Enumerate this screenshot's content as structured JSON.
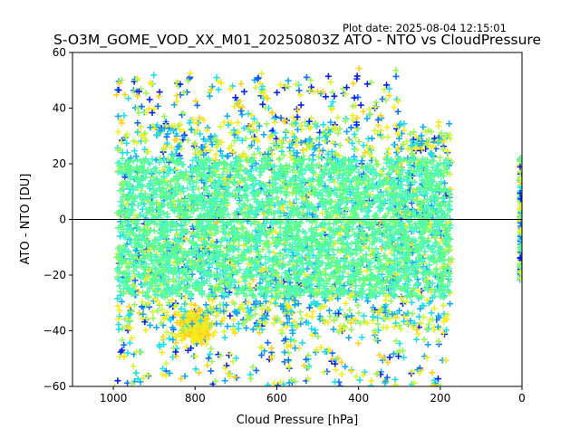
{
  "header": {
    "plot_date": "Plot date: 2025-08-04 12:15:01"
  },
  "chart_data": {
    "type": "scatter",
    "title": "S-O3M_GOME_VOD_XX_M01_20250803Z ATO - NTO vs CloudPressure",
    "xlabel": "Cloud Pressure [hPa]",
    "ylabel": "ATO - NTO [DU]",
    "xlim": [
      1100,
      0
    ],
    "ylim": [
      -60,
      60
    ],
    "x_inverted": true,
    "xticks": [
      1000,
      800,
      600,
      400,
      200,
      0
    ],
    "xtick_labels": [
      "1000",
      "800",
      "600",
      "400",
      "200",
      "0"
    ],
    "yticks": [
      -60,
      -40,
      -20,
      0,
      20,
      40,
      60
    ],
    "ytick_labels": [
      "−60",
      "−40",
      "−20",
      "0",
      "20",
      "40",
      "60"
    ],
    "reference_line_y": 0,
    "marker": "plus",
    "grid": false,
    "colors": [
      "#0a1ef0",
      "#0f6cf8",
      "#14a8f0",
      "#1ee0ec",
      "#4cf5c4",
      "#5cff8c",
      "#9cf55a",
      "#d6f536",
      "#f7ec1e",
      "#ffd21e"
    ],
    "density_regions": [
      {
        "x_range": [
          990,
          175
        ],
        "y_range": [
          -28,
          22
        ],
        "description_level": "core"
      },
      {
        "x_range": [
          990,
          175
        ],
        "y_range": [
          -40,
          35
        ],
        "description_level": "envelope"
      },
      {
        "x_range": [
          990,
          175
        ],
        "y_range": [
          -60,
          52
        ],
        "description_level": "outliers"
      },
      {
        "x_range": [
          5,
          0
        ],
        "y_range": [
          -22,
          22
        ],
        "description_level": "zero-pressure column"
      }
    ]
  }
}
